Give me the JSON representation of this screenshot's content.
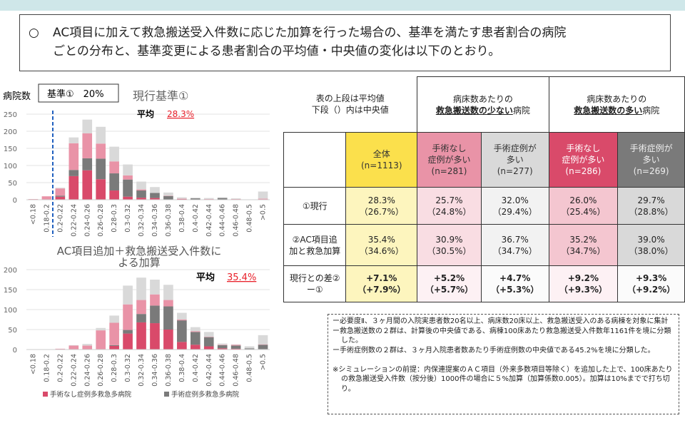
{
  "summary": {
    "bullet": "○",
    "line1": "AC項目に加えて救急搬送受入件数に応じた加算を行った場合の、基準を満たす患者割合の病院",
    "line2": "ごとの分布と、基準変更による患者割合の平均値・中央値の変化は以下のとおり。"
  },
  "colors": {
    "none_high": "#d94a6a",
    "surg_high": "#7a7a7a",
    "none_low": "#e993a7",
    "surg_low": "#d9d9d9",
    "threshold": "#1f5fbf",
    "band": "#cfe7e9"
  },
  "chart_data": [
    {
      "type": "bar",
      "stacked": true,
      "ylabel": "病院数",
      "title": "現行基準①",
      "threshold_label": "基準①　20%",
      "threshold_x": "0.2",
      "mean_label": "平均",
      "mean_value": "28.3%",
      "ylim": [
        0,
        250
      ],
      "yticks": [
        "0",
        "50",
        "100",
        "150",
        "200",
        "250"
      ],
      "grid": true,
      "categories": [
        "<0.18",
        "0.18-0.2",
        "0.2-0.22",
        "0.22-0.24",
        "0.24-0.26",
        "0.26-0.28",
        "0.28-0.3",
        "0.3-0.32",
        "0.32-0.34",
        "0.34-0.36",
        "0.36-0.38",
        "0.38-0.4",
        "0.4-0.42",
        "0.42-0.44",
        "0.44-0.46",
        "0.46-0.48",
        "0.48-0.5",
        ">0.5"
      ],
      "series": [
        {
          "name": "手術なし症例多救急多病院",
          "values": [
            0,
            0,
            9,
            69,
            86,
            60,
            27,
            9,
            6,
            5,
            1,
            2,
            0,
            0,
            0,
            0,
            0,
            0
          ]
        },
        {
          "name": "手術症例多救急多病院",
          "values": [
            0,
            0,
            3,
            18,
            35,
            60,
            50,
            50,
            21,
            15,
            10,
            0,
            4,
            0,
            5,
            0,
            0,
            0
          ]
        },
        {
          "values": [
            2,
            10,
            21,
            78,
            73,
            44,
            35,
            12,
            3,
            0,
            1,
            1,
            0,
            2,
            0,
            2,
            0,
            3
          ]
        },
        {
          "values": [
            0,
            0,
            2,
            17,
            40,
            49,
            43,
            32,
            23,
            17,
            9,
            4,
            2,
            3,
            2,
            2,
            1,
            21
          ]
        }
      ]
    },
    {
      "type": "bar",
      "stacked": true,
      "title": "AC項目追加＋救急搬送受入件数による加算",
      "mean_label": "平均",
      "mean_value": "35.4%",
      "ylim": [
        0,
        200
      ],
      "yticks": [
        "0",
        "50",
        "100",
        "150",
        "200"
      ],
      "grid": true,
      "legend": "bottom",
      "categories": [
        "<0.18",
        "0.18-0.2",
        "0.2-0.22",
        "0.22-0.24",
        "0.24-0.26",
        "0.26-0.28",
        "0.28-0.3",
        "0.3-0.32",
        "0.32-0.34",
        "0.34-0.36",
        "0.36-0.38",
        "0.38-0.4",
        "0.4-0.42",
        "0.42-0.44",
        "0.44-0.46",
        "0.46-0.48",
        "0.48-0.5",
        ">0.5"
      ],
      "series": [
        {
          "name": "手術なし症例多救急多病院",
          "values": [
            0,
            0,
            0,
            0,
            0,
            0,
            9,
            40,
            68,
            66,
            50,
            19,
            12,
            8,
            3,
            2,
            1,
            1
          ]
        },
        {
          "name": "手術症例多救急多病院",
          "values": [
            0,
            0,
            0,
            0,
            0,
            0,
            2,
            9,
            21,
            44,
            58,
            54,
            32,
            23,
            8,
            8,
            2,
            11
          ]
        },
        {
          "values": [
            0,
            0,
            2,
            10,
            10,
            48,
            56,
            64,
            35,
            28,
            16,
            2,
            2,
            1,
            1,
            2,
            0,
            1
          ]
        },
        {
          "values": [
            0,
            0,
            0,
            1,
            4,
            6,
            18,
            47,
            56,
            37,
            38,
            17,
            10,
            12,
            3,
            1,
            5,
            23
          ]
        }
      ]
    }
  ],
  "table": {
    "note1": "表の上段は平均値",
    "note2": "下段（）内は中央値",
    "group_low": {
      "l1": "病床数あたりの",
      "bold": "救急搬送数の少ない",
      "suffix": "病院"
    },
    "group_high": {
      "l1": "病床数あたりの",
      "bold": "救急搬送数の多い",
      "suffix": "病院"
    },
    "columns": [
      {
        "l1": "全体",
        "l2": "",
        "n": "(n=1113)",
        "bg": "#fbe04c"
      },
      {
        "l1": "手術なし",
        "l2": "症例が多い",
        "n": "(n=281)",
        "bg": "#e993a7"
      },
      {
        "l1": "手術症例が",
        "l2": "多い",
        "n": "(n=277)",
        "bg": "#d9d9d9"
      },
      {
        "l1": "手術なし",
        "l2": "症例が多い",
        "n": "(n=286)",
        "bg": "#d94a6a"
      },
      {
        "l1": "手術症例が",
        "l2": "多い",
        "n": "(n=269)",
        "bg": "#7a7a7a"
      }
    ],
    "rows": [
      {
        "label": "①現行",
        "cells": [
          [
            "28.3%",
            "（26.7%）"
          ],
          [
            "25.7%",
            "（24.8%）"
          ],
          [
            "32.0%",
            "（29.4%）"
          ],
          [
            "26.0%",
            "（25.4%）"
          ],
          [
            "29.7%",
            "（28.8%）"
          ]
        ]
      },
      {
        "label": "②AC項目追加と救急加算",
        "cells": [
          [
            "35.4%",
            "（34.6%）"
          ],
          [
            "30.9%",
            "（30.5%）"
          ],
          [
            "36.7%",
            "（34.7%）"
          ],
          [
            "35.2%",
            "（34.7%）"
          ],
          [
            "39.0%",
            "（38.0%）"
          ]
        ]
      },
      {
        "label": "現行との差②ー①",
        "cells": [
          [
            "+7.1%",
            "（+7.9%）"
          ],
          [
            "+5.2%",
            "（+5.7%）"
          ],
          [
            "+4.7%",
            "（+5.3%）"
          ],
          [
            "+9.2%",
            "（+9.3%）"
          ],
          [
            "+9.3%",
            "（+9.2%）"
          ]
        ]
      }
    ]
  },
  "notes": [
    "ー必要度Ⅱ、３ヶ月間の入院実患者数20名以上、病床数20床以上、救急搬送受入のある病棟を対象に集計",
    "ー救急搬送数の２群は、計算後の中央値である、病棟100床あたり救急搬送受入件数年1161件を境に分類した。",
    "ー手術症例数の２群は、３ヶ月入院患者数あたり手術症例数の中央値である45.2%を境に分類した。",
    "",
    "※シミュレーションの前提：内保連提案のＡＣ項目（外来多数項目等除く）を追加した上で、100床あたりの救急搬送受入件数（按分後）1000件の場合に５%加算（加算係数0.005）。加算は10%までで打ち切り。"
  ]
}
